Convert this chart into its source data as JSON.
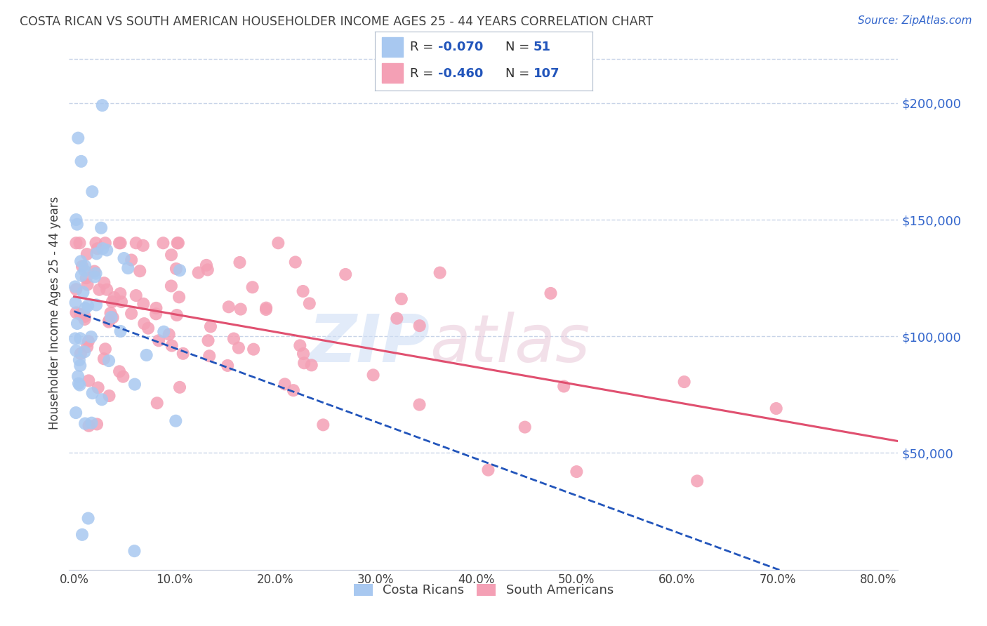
{
  "title": "COSTA RICAN VS SOUTH AMERICAN HOUSEHOLDER INCOME AGES 25 - 44 YEARS CORRELATION CHART",
  "source": "Source: ZipAtlas.com",
  "ylabel": "Householder Income Ages 25 - 44 years",
  "xlabel_ticks": [
    "0.0%",
    "10.0%",
    "20.0%",
    "30.0%",
    "40.0%",
    "50.0%",
    "60.0%",
    "70.0%",
    "80.0%"
  ],
  "ytick_labels": [
    "$50,000",
    "$100,000",
    "$150,000",
    "$200,000"
  ],
  "ytick_values": [
    50000,
    100000,
    150000,
    200000
  ],
  "ylim": [
    0,
    220000
  ],
  "xlim": [
    -0.005,
    0.82
  ],
  "cr_R": -0.07,
  "cr_N": 51,
  "sa_R": -0.46,
  "sa_N": 107,
  "cr_color": "#a8c8f0",
  "sa_color": "#f4a0b5",
  "cr_line_color": "#2255bb",
  "sa_line_color": "#e05070",
  "cr_legend_label": "Costa Ricans",
  "sa_legend_label": "South Americans",
  "legend_val_color": "#2255bb",
  "watermark_zip": "ZIP",
  "watermark_atlas": "atlas",
  "background_color": "#ffffff",
  "grid_color": "#c8d4e8",
  "title_color": "#404040",
  "source_color": "#3366cc",
  "ytick_color": "#3366cc",
  "cr_intercept": 105000,
  "cr_slope": -15000,
  "sa_intercept": 118000,
  "sa_slope": -85000
}
